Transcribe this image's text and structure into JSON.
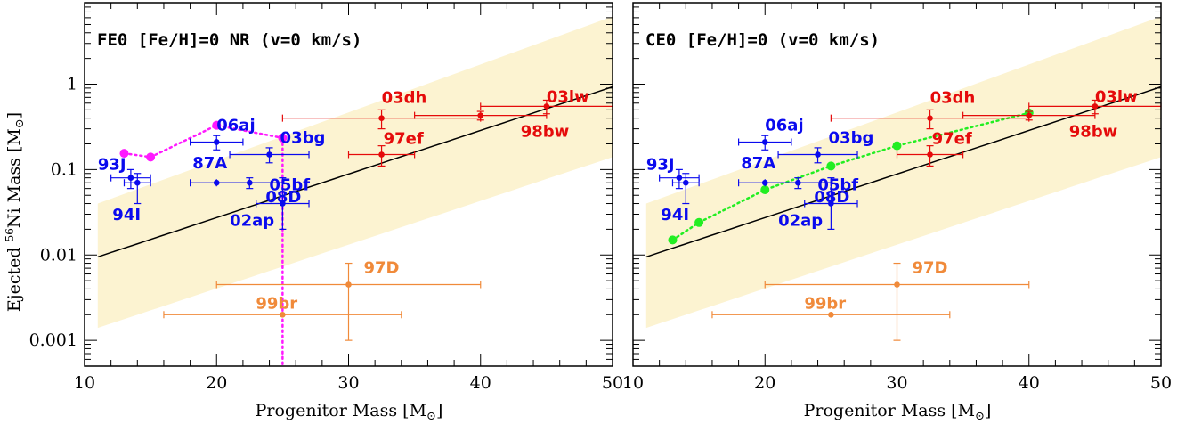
{
  "colors": {
    "band": "#fcf3d1",
    "model": "#000000",
    "blue": "#0a0aee",
    "red": "#e50b0b",
    "orange": "#f08a3a",
    "magenta": "#ff1aff",
    "green": "#22ee22"
  },
  "shared": {
    "xlabel": "Progenitor Mass [M",
    "xlabel_sub": "⊙",
    "xlabel_end": "]",
    "ylabel_pre": "Ejected ",
    "ylabel_sup": "56",
    "ylabel_mid": "Ni Mass [M",
    "ylabel_sub": "⊙",
    "ylabel_end": "]",
    "x_ticks": [
      "10",
      "20",
      "30",
      "40",
      "50"
    ],
    "y_ticks": [
      "0.001",
      "0.01",
      "0.1",
      "1"
    ]
  },
  "chart_data": [
    {
      "type": "scatter",
      "title": "FE0 [Fe/H]=0 NR (v=0 km/s)",
      "xlabel": "Progenitor Mass [M⊙]",
      "ylabel": "Ejected 56Ni Mass [M⊙]",
      "xlim": [
        10,
        50
      ],
      "ylim": [
        0.0005,
        9
      ],
      "y_scale": "log",
      "grid": false,
      "band": {
        "x": [
          11,
          50
        ],
        "lower": [
          0.0014,
          0.14
        ],
        "upper": [
          0.04,
          6.2
        ]
      },
      "model_curve": {
        "x_start": 11,
        "x_end": 50,
        "y_start": 0.0095,
        "y_end": 0.93
      },
      "observations": [
        {
          "name": "93J",
          "x": 13.5,
          "y": 0.08,
          "xerr": [
            1.5,
            1.5
          ],
          "yerr": [
            0.02,
            0.02
          ],
          "color": "blue"
        },
        {
          "name": "94I",
          "x": 14,
          "y": 0.07,
          "xerr": [
            1,
            1
          ],
          "yerr": [
            0.03,
            0.02
          ],
          "color": "blue"
        },
        {
          "name": "06aj",
          "x": 20,
          "y": 0.21,
          "xerr": [
            2,
            2
          ],
          "yerr": [
            0.04,
            0.04
          ],
          "color": "blue"
        },
        {
          "name": "03bg",
          "x": 24,
          "y": 0.15,
          "xerr": [
            3,
            3
          ],
          "yerr": [
            0.03,
            0.03
          ],
          "color": "blue"
        },
        {
          "name": "87A",
          "x": 20,
          "y": 0.07,
          "xerr": [
            2,
            5
          ],
          "yerr": [
            0,
            0
          ],
          "color": "blue"
        },
        {
          "name": "08D",
          "x": 22.5,
          "y": 0.07,
          "xerr": [
            2.5,
            2.5
          ],
          "yerr": [
            0.01,
            0.01
          ],
          "color": "blue"
        },
        {
          "name": "05bf",
          "x": 25,
          "y": 0.04,
          "xerr": [
            2,
            2
          ],
          "yerr": [
            0.02,
            0.04
          ],
          "color": "blue"
        },
        {
          "name": "03dh",
          "x": 32.5,
          "y": 0.4,
          "xerr": [
            7.5,
            7.5
          ],
          "yerr": [
            0.1,
            0.1
          ],
          "color": "red"
        },
        {
          "name": "97ef",
          "x": 32.5,
          "y": 0.15,
          "xerr": [
            2.5,
            2.5
          ],
          "yerr": [
            0.04,
            0.04
          ],
          "color": "red"
        },
        {
          "name": "98bw",
          "x": 40,
          "y": 0.43,
          "xerr": [
            5,
            5
          ],
          "yerr": [
            0.05,
            0.05
          ],
          "color": "red"
        },
        {
          "name": "03lw",
          "x": 45,
          "y": 0.55,
          "xerr": [
            5,
            5
          ],
          "yerr": [
            0.1,
            0.1
          ],
          "color": "red"
        },
        {
          "name": "97D",
          "x": 30,
          "y": 0.0045,
          "xerr": [
            10,
            10
          ],
          "yerr": [
            0.0035,
            0.0035
          ],
          "color": "orange"
        },
        {
          "name": "99br",
          "x": 25,
          "y": 0.002,
          "xerr": [
            9,
            9
          ],
          "yerr": [
            0,
            0
          ],
          "color": "orange"
        }
      ],
      "extra_labels": [
        {
          "text": "02ap",
          "x": 21,
          "y": 0.022,
          "color": "blue"
        }
      ],
      "model_points": {
        "color": "magenta",
        "style": "dotted",
        "x": [
          13,
          15,
          20,
          25
        ],
        "y": [
          0.155,
          0.14,
          0.33,
          0.235
        ],
        "drop_to_axis_at_x": 25
      }
    },
    {
      "type": "scatter",
      "title": "CE0 [Fe/H]=0 (v=0 km/s)",
      "xlabel": "Progenitor Mass [M⊙]",
      "ylabel": "",
      "xlim": [
        10,
        50
      ],
      "ylim": [
        0.0005,
        9
      ],
      "y_scale": "log",
      "grid": false,
      "band": {
        "x": [
          11,
          50
        ],
        "lower": [
          0.0014,
          0.14
        ],
        "upper": [
          0.04,
          6.2
        ]
      },
      "model_curve": {
        "x_start": 11,
        "x_end": 50,
        "y_start": 0.0095,
        "y_end": 0.93
      },
      "observations": [
        {
          "name": "93J",
          "x": 13.5,
          "y": 0.08,
          "xerr": [
            1.5,
            1.5
          ],
          "yerr": [
            0.02,
            0.02
          ],
          "color": "blue"
        },
        {
          "name": "94I",
          "x": 14,
          "y": 0.07,
          "xerr": [
            1,
            1
          ],
          "yerr": [
            0.03,
            0.02
          ],
          "color": "blue"
        },
        {
          "name": "06aj",
          "x": 20,
          "y": 0.21,
          "xerr": [
            2,
            2
          ],
          "yerr": [
            0.04,
            0.04
          ],
          "color": "blue"
        },
        {
          "name": "03bg",
          "x": 24,
          "y": 0.15,
          "xerr": [
            3,
            3
          ],
          "yerr": [
            0.03,
            0.03
          ],
          "color": "blue"
        },
        {
          "name": "87A",
          "x": 20,
          "y": 0.07,
          "xerr": [
            2,
            5
          ],
          "yerr": [
            0,
            0
          ],
          "color": "blue"
        },
        {
          "name": "08D",
          "x": 22.5,
          "y": 0.07,
          "xerr": [
            2.5,
            2.5
          ],
          "yerr": [
            0.01,
            0.01
          ],
          "color": "blue"
        },
        {
          "name": "05bf",
          "x": 25,
          "y": 0.04,
          "xerr": [
            2,
            2
          ],
          "yerr": [
            0.02,
            0.04
          ],
          "color": "blue"
        },
        {
          "name": "03dh",
          "x": 32.5,
          "y": 0.4,
          "xerr": [
            7.5,
            7.5
          ],
          "yerr": [
            0.1,
            0.1
          ],
          "color": "red"
        },
        {
          "name": "97ef",
          "x": 32.5,
          "y": 0.15,
          "xerr": [
            2.5,
            2.5
          ],
          "yerr": [
            0.04,
            0.04
          ],
          "color": "red"
        },
        {
          "name": "98bw",
          "x": 40,
          "y": 0.43,
          "xerr": [
            5,
            5
          ],
          "yerr": [
            0.05,
            0.05
          ],
          "color": "red"
        },
        {
          "name": "03lw",
          "x": 45,
          "y": 0.55,
          "xerr": [
            5,
            5
          ],
          "yerr": [
            0.1,
            0.1
          ],
          "color": "red"
        },
        {
          "name": "97D",
          "x": 30,
          "y": 0.0045,
          "xerr": [
            10,
            10
          ],
          "yerr": [
            0.0035,
            0.0035
          ],
          "color": "orange"
        },
        {
          "name": "99br",
          "x": 25,
          "y": 0.002,
          "xerr": [
            9,
            9
          ],
          "yerr": [
            0,
            0
          ],
          "color": "orange"
        }
      ],
      "extra_labels": [
        {
          "text": "02ap",
          "x": 21,
          "y": 0.022,
          "color": "blue"
        }
      ],
      "model_points": {
        "color": "green",
        "style": "dotted",
        "x": [
          13,
          15,
          20,
          25,
          30,
          40
        ],
        "y": [
          0.015,
          0.024,
          0.058,
          0.11,
          0.19,
          0.46
        ]
      }
    }
  ]
}
